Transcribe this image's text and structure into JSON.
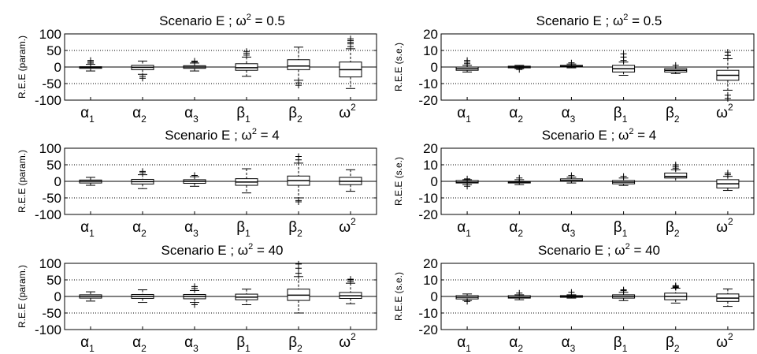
{
  "chart_data": [
    {
      "type": "box",
      "title_prefix": "Scenario E   ;   ω",
      "title_sup": "2",
      "title_suffix": " = 0.5",
      "ylabel": "R.E.E (param.)",
      "ylim": [
        -100,
        100
      ],
      "yticks": [
        -100,
        -50,
        0,
        50,
        100
      ],
      "categories": [
        {
          "base": "α",
          "sub": "1"
        },
        {
          "base": "α",
          "sub": "2"
        },
        {
          "base": "α",
          "sub": "3"
        },
        {
          "base": "β",
          "sub": "1"
        },
        {
          "base": "β",
          "sub": "2"
        },
        {
          "base": "ω",
          "sup": "2"
        }
      ],
      "boxes": [
        {
          "q1": -4,
          "med": -1,
          "q3": 1,
          "wlo": -12,
          "whi": 8,
          "outliers": [
            12,
            16,
            20
          ]
        },
        {
          "q1": -8,
          "med": -1,
          "q3": 5,
          "wlo": -22,
          "whi": 18,
          "outliers": [
            -28,
            -34
          ]
        },
        {
          "q1": -4,
          "med": 0,
          "q3": 4,
          "wlo": -12,
          "whi": 12,
          "outliers": [
            15,
            18
          ]
        },
        {
          "q1": -10,
          "med": -2,
          "q3": 10,
          "wlo": -28,
          "whi": 30,
          "outliers": [
            36,
            42,
            47
          ]
        },
        {
          "q1": -8,
          "med": 3,
          "q3": 22,
          "wlo": -40,
          "whi": 60,
          "outliers": [
            -48,
            -55
          ]
        },
        {
          "q1": -30,
          "med": -8,
          "q3": 15,
          "wlo": -65,
          "whi": 55,
          "outliers": [
            62,
            70,
            75,
            80,
            85
          ]
        }
      ]
    },
    {
      "type": "box",
      "title_prefix": "Scenario E   ;   ω",
      "title_sup": "2",
      "title_suffix": " = 0.5",
      "ylabel": "R.E.E (s.e.)",
      "ylim": [
        -20,
        20
      ],
      "yticks": [
        -20,
        -10,
        0,
        10,
        20
      ],
      "categories": [
        {
          "base": "α",
          "sub": "1"
        },
        {
          "base": "α",
          "sub": "2"
        },
        {
          "base": "α",
          "sub": "3"
        },
        {
          "base": "β",
          "sub": "1"
        },
        {
          "base": "β",
          "sub": "2"
        },
        {
          "base": "ω",
          "sup": "2"
        }
      ],
      "boxes": [
        {
          "q1": -2,
          "med": -1,
          "q3": 0,
          "wlo": -3,
          "whi": 1,
          "outliers": [
            2,
            3,
            4
          ]
        },
        {
          "q1": -0.5,
          "med": 0,
          "q3": 0.5,
          "wlo": -1,
          "whi": 1,
          "outliers": [
            -1.5
          ]
        },
        {
          "q1": 0,
          "med": 0.5,
          "q3": 1,
          "wlo": -0.5,
          "whi": 1.8,
          "outliers": [
            2.5
          ]
        },
        {
          "q1": -3,
          "med": -1,
          "q3": 1,
          "wlo": -5,
          "whi": 3,
          "outliers": [
            4,
            6,
            8
          ]
        },
        {
          "q1": -3,
          "med": -2,
          "q3": -1,
          "wlo": -4,
          "whi": 0,
          "outliers": [
            1
          ]
        },
        {
          "q1": -8,
          "med": -5,
          "q3": -2,
          "wlo": -14,
          "whi": 5,
          "outliers": [
            7,
            9,
            -17,
            -19
          ]
        }
      ]
    },
    {
      "type": "box",
      "title_prefix": "Scenario E   ;   ω",
      "title_sup": "2",
      "title_suffix": " = 4",
      "ylabel": "R.E.E (param.)",
      "ylim": [
        -100,
        100
      ],
      "yticks": [
        -100,
        -50,
        0,
        50,
        100
      ],
      "categories": [
        {
          "base": "α",
          "sub": "1"
        },
        {
          "base": "α",
          "sub": "2"
        },
        {
          "base": "α",
          "sub": "3"
        },
        {
          "base": "β",
          "sub": "1"
        },
        {
          "base": "β",
          "sub": "2"
        },
        {
          "base": "ω",
          "sup": "2"
        }
      ],
      "boxes": [
        {
          "q1": -5,
          "med": 0,
          "q3": 4,
          "wlo": -12,
          "whi": 12,
          "outliers": []
        },
        {
          "q1": -8,
          "med": -1,
          "q3": 6,
          "wlo": -22,
          "whi": 20,
          "outliers": [
            26,
            30
          ]
        },
        {
          "q1": -6,
          "med": 0,
          "q3": 5,
          "wlo": -15,
          "whi": 14,
          "outliers": [
            18
          ]
        },
        {
          "q1": -12,
          "med": -2,
          "q3": 8,
          "wlo": -35,
          "whi": 38,
          "outliers": []
        },
        {
          "q1": -12,
          "med": 2,
          "q3": 16,
          "wlo": -50,
          "whi": 55,
          "outliers": [
            -58,
            -62,
            65,
            75
          ]
        },
        {
          "q1": -10,
          "med": 0,
          "q3": 12,
          "wlo": -30,
          "whi": 35,
          "outliers": []
        }
      ]
    },
    {
      "type": "box",
      "title_prefix": "Scenario E   ;   ω",
      "title_sup": "2",
      "title_suffix": " = 4",
      "ylabel": "R.E.E (s.e.)",
      "ylim": [
        -20,
        20
      ],
      "yticks": [
        -20,
        -10,
        0,
        10,
        20
      ],
      "categories": [
        {
          "base": "α",
          "sub": "1"
        },
        {
          "base": "α",
          "sub": "2"
        },
        {
          "base": "α",
          "sub": "3"
        },
        {
          "base": "β",
          "sub": "1"
        },
        {
          "base": "β",
          "sub": "2"
        },
        {
          "base": "ω",
          "sup": "2"
        }
      ],
      "boxes": [
        {
          "q1": -1,
          "med": -0.5,
          "q3": 0.5,
          "wlo": -2,
          "whi": 1,
          "outliers": [
            -3,
            1.5
          ]
        },
        {
          "q1": -1,
          "med": -0.5,
          "q3": 0,
          "wlo": -2,
          "whi": 1,
          "outliers": [
            2
          ]
        },
        {
          "q1": 0,
          "med": 0.5,
          "q3": 1.5,
          "wlo": -1,
          "whi": 2.5,
          "outliers": [
            3.5
          ]
        },
        {
          "q1": -1.5,
          "med": -0.5,
          "q3": 0.5,
          "wlo": -2.5,
          "whi": 2,
          "outliers": [
            3
          ]
        },
        {
          "q1": 2,
          "med": 3,
          "q3": 5,
          "wlo": 0,
          "whi": 7,
          "outliers": [
            8,
            9,
            10
          ]
        },
        {
          "q1": -4,
          "med": -1.5,
          "q3": 1,
          "wlo": -5.5,
          "whi": 3,
          "outliers": [
            4,
            5
          ]
        }
      ]
    },
    {
      "type": "box",
      "title_prefix": "Scenario E   ;   ω",
      "title_sup": "2",
      "title_suffix": " = 40",
      "ylabel": "R.E.E (param.)",
      "ylim": [
        -100,
        100
      ],
      "yticks": [
        -100,
        -50,
        0,
        50,
        100
      ],
      "categories": [
        {
          "base": "α",
          "sub": "1"
        },
        {
          "base": "α",
          "sub": "2"
        },
        {
          "base": "α",
          "sub": "3"
        },
        {
          "base": "β",
          "sub": "1"
        },
        {
          "base": "β",
          "sub": "2"
        },
        {
          "base": "ω",
          "sup": "2"
        }
      ],
      "boxes": [
        {
          "q1": -5,
          "med": 0,
          "q3": 5,
          "wlo": -14,
          "whi": 14,
          "outliers": []
        },
        {
          "q1": -6,
          "med": 0,
          "q3": 6,
          "wlo": -18,
          "whi": 20,
          "outliers": []
        },
        {
          "q1": -7,
          "med": 0,
          "q3": 6,
          "wlo": -18,
          "whi": 18,
          "outliers": [
            -25,
            24,
            30
          ]
        },
        {
          "q1": -10,
          "med": -2,
          "q3": 7,
          "wlo": -25,
          "whi": 22,
          "outliers": []
        },
        {
          "q1": -12,
          "med": 4,
          "q3": 22,
          "wlo": -50,
          "whi": 60,
          "outliers": [
            70,
            85,
            98
          ]
        },
        {
          "q1": -6,
          "med": 2,
          "q3": 12,
          "wlo": -22,
          "whi": 40,
          "outliers": [
            45,
            50,
            52
          ]
        }
      ]
    },
    {
      "type": "box",
      "title_prefix": "Scenario E   ;   ω",
      "title_sup": "2",
      "title_suffix": " = 40",
      "ylabel": "R.E.E (s.e.)",
      "ylim": [
        -20,
        20
      ],
      "yticks": [
        -20,
        -10,
        0,
        10,
        20
      ],
      "categories": [
        {
          "base": "α",
          "sub": "1"
        },
        {
          "base": "α",
          "sub": "2"
        },
        {
          "base": "α",
          "sub": "3"
        },
        {
          "base": "β",
          "sub": "1"
        },
        {
          "base": "β",
          "sub": "2"
        },
        {
          "base": "ω",
          "sup": "2"
        }
      ],
      "boxes": [
        {
          "q1": -1.5,
          "med": -0.5,
          "q3": 0.5,
          "wlo": -2.5,
          "whi": 1.5,
          "outliers": [
            -3
          ]
        },
        {
          "q1": -1,
          "med": -0.5,
          "q3": 0.5,
          "wlo": -2,
          "whi": 1,
          "outliers": [
            2
          ]
        },
        {
          "q1": -0.5,
          "med": 0,
          "q3": 0.5,
          "wlo": -1,
          "whi": 1,
          "outliers": [
            2.5
          ]
        },
        {
          "q1": -1,
          "med": 0,
          "q3": 1,
          "wlo": -2.5,
          "whi": 2.5,
          "outliers": [
            3.5,
            4
          ]
        },
        {
          "q1": -2,
          "med": 0,
          "q3": 2,
          "wlo": -4,
          "whi": 5,
          "outliers": [
            5.5,
            6,
            6.5
          ]
        },
        {
          "q1": -3,
          "med": -1,
          "q3": 1.5,
          "wlo": -6,
          "whi": 4.5,
          "outliers": []
        }
      ]
    }
  ]
}
